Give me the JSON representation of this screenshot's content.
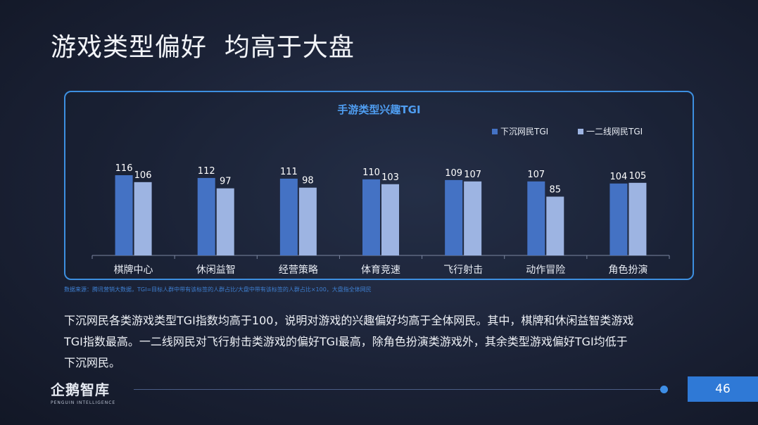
{
  "slide": {
    "title": "游戏类型偏好  均高于大盘",
    "source": "数据来源：腾讯营销大数据，TGI=目标人群中带有该标签的人群占比/大盘中带有该标签的人群占比×100，大盘指全体网民",
    "body_lines": [
      "下沉网民各类游戏类型TGI指数均高于100，说明对游戏的兴趣偏好均高于全体网民。其中，棋牌和休闲益智类游戏",
      "TGI指数最高。一二线网民对飞行射击类游戏的偏好TGI最高，除角色扮演类游戏外，其余类型游戏偏好TGI均低于",
      "下沉网民。"
    ],
    "logo_main": "企鹅智库",
    "logo_sub": "PENGUIN INTELLIGENCE",
    "page_number": "46"
  },
  "colors": {
    "series_dark": "#4472c4",
    "series_light": "#9db4e2",
    "frame": "#3d8fe0",
    "chart_title": "#4f9df0"
  },
  "chart_data": {
    "type": "bar",
    "title": "手游类型兴趣TGI",
    "categories": [
      "棋牌中心",
      "休闲益智",
      "经营策略",
      "体育竞速",
      "飞行射击",
      "动作冒险",
      "角色扮演"
    ],
    "series": [
      {
        "name": "下沉网民TGI",
        "values": [
          116,
          112,
          111,
          110,
          109,
          107,
          104
        ]
      },
      {
        "name": "一二线网民TGI",
        "values": [
          106,
          97,
          98,
          103,
          107,
          85,
          105
        ]
      }
    ],
    "ylim": [
      0,
      130
    ],
    "legend": "top-right",
    "grid": false
  }
}
